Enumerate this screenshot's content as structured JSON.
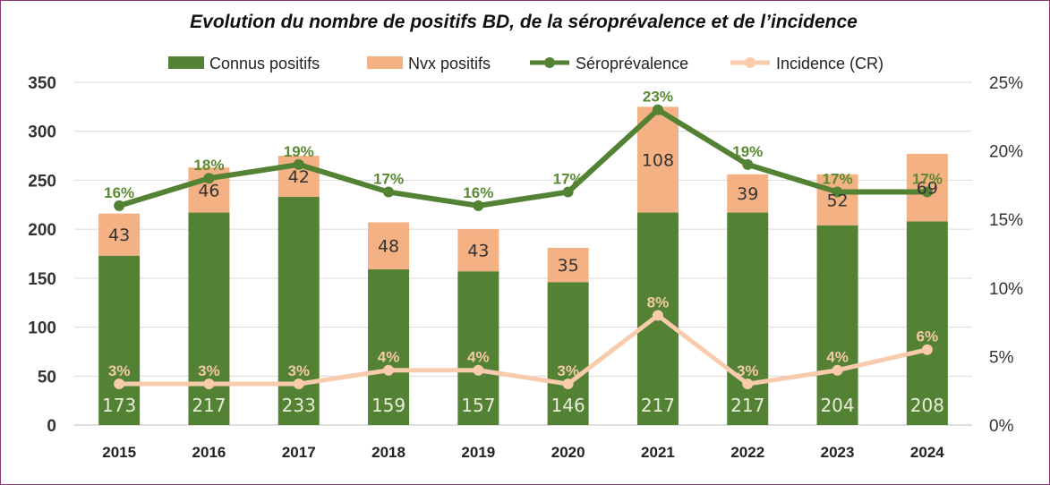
{
  "chart_data": {
    "type": "bar",
    "title": "Evolution du nombre de positifs BD, de la séroprévalence et de l’incidence",
    "categories": [
      "2015",
      "2016",
      "2017",
      "2018",
      "2019",
      "2020",
      "2021",
      "2022",
      "2023",
      "2024"
    ],
    "series": [
      {
        "name": "Connus positifs",
        "type": "bar",
        "stack": "positifs",
        "axis": "left",
        "color": "#548235",
        "values": [
          173,
          217,
          233,
          159,
          157,
          146,
          217,
          217,
          204,
          208
        ]
      },
      {
        "name": "Nvx positifs",
        "type": "bar",
        "stack": "positifs",
        "axis": "left",
        "color": "#f4b183",
        "values": [
          43,
          46,
          42,
          48,
          43,
          35,
          108,
          39,
          52,
          69
        ]
      },
      {
        "name": "Séroprévalence",
        "type": "line",
        "axis": "right",
        "color": "#548235",
        "values": [
          16,
          18,
          19,
          17,
          16,
          17,
          23,
          19,
          17,
          17
        ],
        "labels": [
          "16%",
          "18%",
          "19%",
          "17%",
          "16%",
          "17%",
          "23%",
          "19%",
          "17%",
          "17%"
        ]
      },
      {
        "name": "Incidence (CR)",
        "type": "line",
        "axis": "right",
        "color": "#f8cbad",
        "values": [
          3,
          3,
          3,
          4,
          4,
          3,
          8,
          3,
          4,
          5.5
        ],
        "labels": [
          "3%",
          "3%",
          "3%",
          "4%",
          "4%",
          "3%",
          "8%",
          "3%",
          "4%",
          "6%"
        ]
      }
    ],
    "y_left": {
      "ylim": [
        0,
        350
      ],
      "ticks": [
        "0",
        "50",
        "100",
        "150",
        "200",
        "250",
        "300",
        "350"
      ]
    },
    "y_right": {
      "ylim": [
        0,
        25
      ],
      "ticks": [
        "0%",
        "5%",
        "10%",
        "15%",
        "20%",
        "25%"
      ]
    },
    "grid": true,
    "legend": "top"
  }
}
